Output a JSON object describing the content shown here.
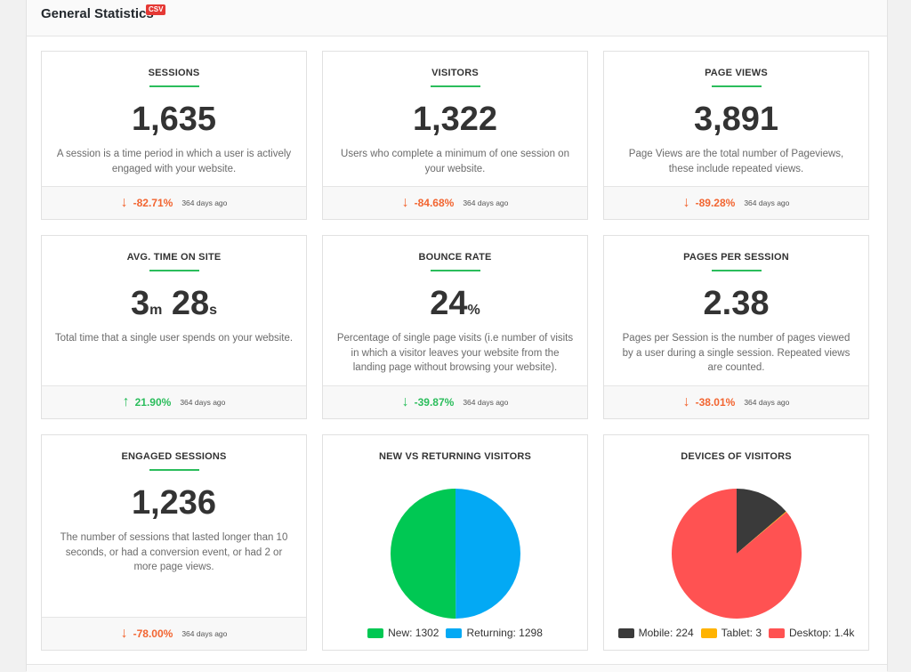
{
  "header": {
    "title": "General Statistics",
    "badge": "CSV"
  },
  "cards": [
    {
      "title": "SESSIONS",
      "value": "1,635",
      "desc": "A session is a time period in which a user is actively engaged with your website.",
      "change": "-82.71%",
      "direction": "down",
      "ago": "364 days ago"
    },
    {
      "title": "VISITORS",
      "value": "1,322",
      "desc": "Users who complete a minimum of one session on your website.",
      "change": "-84.68%",
      "direction": "down",
      "ago": "364 days ago"
    },
    {
      "title": "PAGE VIEWS",
      "value": "3,891",
      "desc": "Page Views are the total number of Pageviews, these include repeated views.",
      "change": "-89.28%",
      "direction": "down",
      "ago": "364 days ago"
    },
    {
      "title": "AVG. TIME ON SITE",
      "value_min": "3",
      "unit_min": "m",
      "value_sec": "28",
      "unit_sec": "s",
      "desc": "Total time that a single user spends on your website.",
      "change": "21.90%",
      "direction": "up",
      "ago": "364 days ago"
    },
    {
      "title": "BOUNCE RATE",
      "value": "24",
      "unit": "%",
      "desc": "Percentage of single page visits (i.e number of visits in which a visitor leaves your website from the landing page without browsing your website).",
      "change": "-39.87%",
      "direction": "down",
      "ago": "364 days ago"
    },
    {
      "title": "PAGES PER SESSION",
      "value": "2.38",
      "desc": "Pages per Session is the number of pages viewed by a user during a single session. Repeated views are counted.",
      "change": "-38.01%",
      "direction": "down",
      "ago": "364 days ago"
    },
    {
      "title": "ENGAGED SESSIONS",
      "value": "1,236",
      "desc": "The number of sessions that lasted longer than 10 seconds, or had a conversion event, or had 2 or more page views.",
      "change": "-78.00%",
      "direction": "down",
      "ago": "364 days ago"
    }
  ],
  "arrows": {
    "down": "↓",
    "up": "↑"
  },
  "chart_data": [
    {
      "type": "pie",
      "title": "NEW VS RETURNING VISITORS",
      "categories": [
        "New",
        "Returning"
      ],
      "values": [
        1302,
        1298
      ],
      "legend_labels": [
        "New: 1302",
        "Returning: 1298"
      ],
      "colors": [
        "#00c853",
        "#03a9f4"
      ],
      "legend": "bottom"
    },
    {
      "type": "pie",
      "title": "DEVICES OF VISITORS",
      "categories": [
        "Mobile",
        "Tablet",
        "Desktop"
      ],
      "values": [
        224,
        3,
        1400
      ],
      "legend_labels": [
        "Mobile: 224",
        "Tablet: 3",
        "Desktop: 1.4k"
      ],
      "colors": [
        "#3a3a3a",
        "#ffb300",
        "#ff5252"
      ],
      "legend": "bottom"
    }
  ]
}
